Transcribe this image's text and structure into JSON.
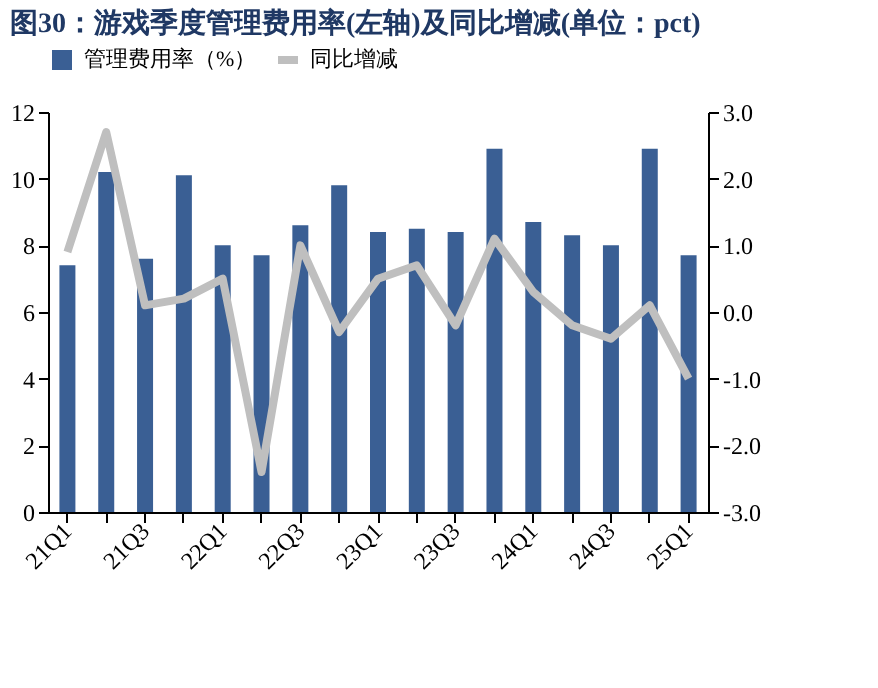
{
  "chart_data": {
    "type": "bar",
    "title": "图30：游戏季度管理费用率(左轴)及同比增减(单位：pct)",
    "categories": [
      "21Q1",
      null,
      "21Q3",
      null,
      "22Q1",
      null,
      "22Q3",
      null,
      "23Q1",
      null,
      "23Q3",
      null,
      "24Q1",
      null,
      "24Q3",
      null,
      "25Q1"
    ],
    "series": [
      {
        "name": "管理费用率（%）",
        "color": "#3a5f94",
        "values": [
          7.4,
          10.2,
          7.6,
          10.1,
          8.0,
          7.7,
          8.6,
          9.8,
          8.4,
          8.5,
          8.4,
          10.9,
          8.7,
          8.3,
          8.0,
          10.9,
          7.7
        ]
      },
      {
        "name": "同比增减",
        "type": "line",
        "axis": "y2",
        "color": "#bfbfbf",
        "values": [
          0.9,
          2.7,
          0.1,
          0.2,
          0.5,
          -2.4,
          1.0,
          -0.3,
          0.5,
          0.7,
          -0.2,
          1.1,
          0.3,
          -0.2,
          -0.4,
          0.1,
          -1.0
        ]
      }
    ],
    "ylim": [
      0,
      12
    ],
    "yticks": [
      0,
      2,
      4,
      6,
      8,
      10,
      12
    ],
    "y2lim": [
      -3,
      3
    ],
    "y2ticks": [
      {
        "value": 3,
        "label": "3.0"
      },
      {
        "value": 2,
        "label": "2.0"
      },
      {
        "value": 1,
        "label": "1.0"
      },
      {
        "value": 0,
        "label": "0.0"
      },
      {
        "value": -1,
        "label": "-1.0"
      },
      {
        "value": -2,
        "label": "-2.0"
      },
      {
        "value": -3,
        "label": "-3.0"
      }
    ],
    "grid": false,
    "legend": "top",
    "line_style": "solid",
    "marker": "none"
  }
}
